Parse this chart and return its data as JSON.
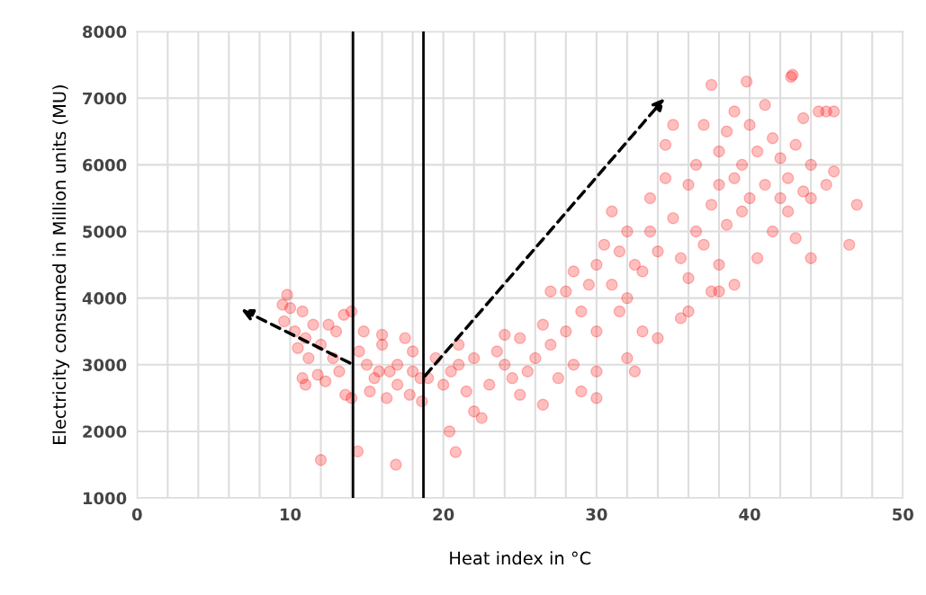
{
  "chart_data": {
    "type": "scatter",
    "xlabel": "Heat index in °C",
    "ylabel": "Electricity consumed in Million units (MU)",
    "xlim": [
      0,
      50
    ],
    "ylim": [
      1000,
      8000
    ],
    "xticks": [
      0,
      {
        "value": 2,
        "label": null
      },
      {
        "value": 4,
        "label": null
      },
      {
        "value": 6,
        "label": null
      },
      {
        "value": 8,
        "label": null
      },
      10,
      {
        "value": 12,
        "label": null
      },
      {
        "value": 14,
        "label": null
      },
      {
        "value": 16,
        "label": null
      },
      {
        "value": 18,
        "label": null
      },
      20,
      {
        "value": 22,
        "label": null
      },
      {
        "value": 24,
        "label": null
      },
      {
        "value": 26,
        "label": null
      },
      {
        "value": 28,
        "label": null
      },
      30,
      {
        "value": 32,
        "label": null
      },
      {
        "value": 34,
        "label": null
      },
      {
        "value": 36,
        "label": null
      },
      {
        "value": 38,
        "label": null
      },
      40,
      {
        "value": 42,
        "label": null
      },
      {
        "value": 44,
        "label": null
      },
      {
        "value": 46,
        "label": null
      },
      {
        "value": 48,
        "label": null
      },
      50
    ],
    "yticks": [
      1000,
      2000,
      3000,
      4000,
      5000,
      6000,
      7000,
      8000
    ],
    "grid": true,
    "marker": "circle",
    "ref_lines": [
      {
        "axis": "x",
        "value": 14.1,
        "color": "#000000"
      },
      {
        "axis": "x",
        "value": 18.7,
        "color": "#000000"
      }
    ],
    "series": [
      {
        "color": "#ff0000",
        "x": [
          9.5,
          9.8,
          10,
          9.6,
          10.3,
          10.8,
          11,
          11.5,
          10.5,
          11.2,
          12,
          12.5,
          13,
          13.5,
          14,
          12.8,
          13.2,
          11.8,
          10.8,
          11,
          12.3,
          13.6,
          14,
          12,
          14.4,
          16.9,
          20.4,
          20.8,
          14.5,
          15,
          15.5,
          16,
          16.5,
          17,
          17.5,
          18,
          18.5,
          15.2,
          16.3,
          17.8,
          18.6,
          14.8,
          16,
          17,
          18,
          15.8,
          19,
          19.5,
          20,
          20.5,
          21,
          21.5,
          22,
          22.5,
          23,
          23.5,
          24,
          24.5,
          25,
          25.5,
          26,
          26.5,
          27,
          26.5,
          21,
          22,
          24,
          25,
          27.5,
          27,
          28,
          28,
          28.5,
          29,
          29.5,
          30,
          30,
          30.5,
          31,
          31,
          31.5,
          32,
          32,
          32.5,
          33,
          33,
          33.5,
          33.5,
          34,
          34,
          29,
          30,
          32,
          31.5,
          28.5,
          30,
          32.5,
          34.5,
          34.5,
          35,
          35,
          35.5,
          35.5,
          36,
          36,
          36.5,
          36.5,
          37,
          37,
          37.5,
          37.5,
          38,
          38,
          38,
          38.5,
          38.5,
          39,
          39,
          39,
          39.5,
          39.5,
          40,
          40,
          37.5,
          39.8,
          36,
          38,
          40.5,
          40.5,
          41,
          41,
          41.5,
          41.5,
          42,
          42,
          42.5,
          42.5,
          42.8,
          43,
          43,
          43.5,
          43.5,
          44,
          44,
          44.5,
          44,
          45,
          45,
          45.5,
          45.5,
          46.5,
          47,
          42.7
        ],
        "values": [
          3900,
          4050,
          3850,
          3650,
          3500,
          3800,
          3400,
          3600,
          3250,
          3100,
          3300,
          3600,
          3500,
          3750,
          3800,
          3100,
          2900,
          2850,
          2800,
          2700,
          2750,
          2550,
          2500,
          1570,
          1700,
          1500,
          2000,
          1690,
          3200,
          3000,
          2800,
          3300,
          2900,
          2700,
          3400,
          3200,
          2800,
          2600,
          2500,
          2550,
          2450,
          3500,
          3450,
          3000,
          2900,
          2900,
          2800,
          3100,
          2700,
          2900,
          3000,
          2600,
          2300,
          2200,
          2700,
          3200,
          3000,
          2800,
          3400,
          2900,
          3100,
          3600,
          3300,
          2400,
          3300,
          3100,
          3450,
          2550,
          2800,
          4100,
          4100,
          3500,
          3000,
          3800,
          4200,
          3500,
          4500,
          4800,
          4200,
          5300,
          4700,
          4000,
          5000,
          4500,
          3500,
          4400,
          5500,
          5000,
          4700,
          3400,
          2600,
          2900,
          3100,
          3800,
          4400,
          2500,
          2900,
          6300,
          5800,
          6600,
          5200,
          4600,
          3700,
          5700,
          4300,
          6000,
          5000,
          6600,
          4800,
          5400,
          4100,
          6200,
          5700,
          4500,
          6500,
          5100,
          6800,
          5800,
          4200,
          5300,
          6000,
          5500,
          6600,
          7200,
          7250,
          3800,
          4100,
          6200,
          4600,
          5700,
          6900,
          5000,
          6400,
          5500,
          6100,
          5800,
          5300,
          7350,
          6300,
          4900,
          6700,
          5600,
          6000,
          4600,
          6800,
          5500,
          6800,
          5700,
          6800,
          5900,
          4800,
          5400,
          7320
        ]
      }
    ]
  }
}
